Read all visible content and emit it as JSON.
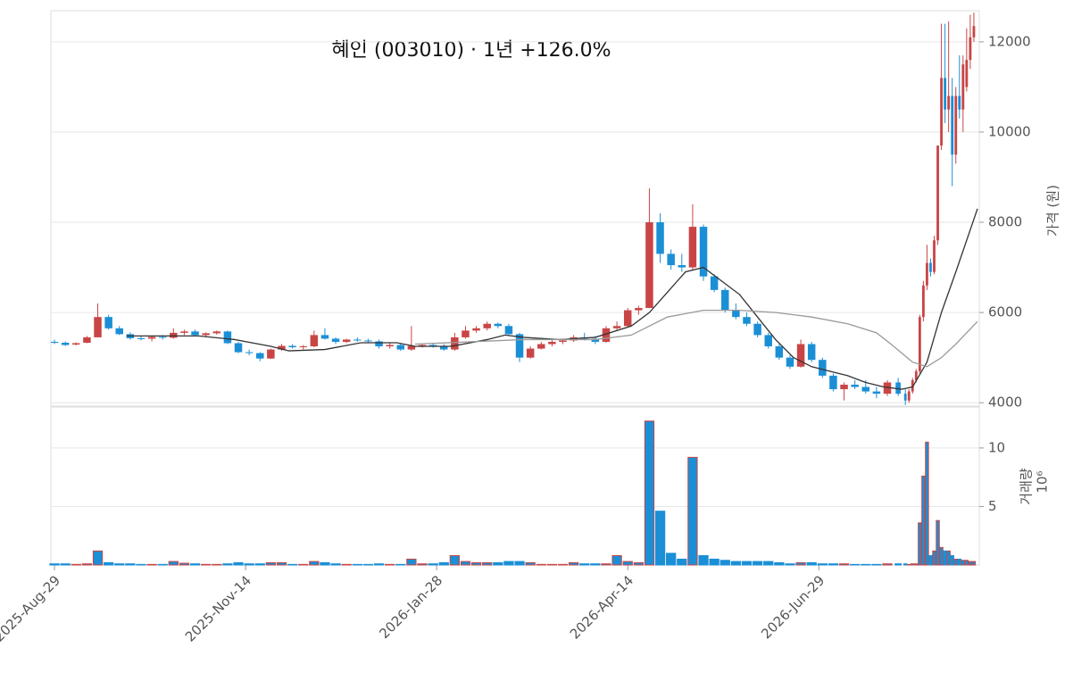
{
  "chart_data": [
    {
      "type": "candlestick",
      "title": "혜인 (003010)  ·  1년 +126.0%",
      "ylabel": "가격 (원)",
      "up_color": "#c94545",
      "down_color": "#1b8fd6",
      "xlim": [
        -1,
        256.5
      ],
      "xticks": [
        {
          "value": 0,
          "label": "2025-Aug-29"
        },
        {
          "value": 53,
          "label": "2025-Nov-14"
        },
        {
          "value": 106,
          "label": "2026-Jan-28"
        },
        {
          "value": 159,
          "label": "2026-Apr-14"
        },
        {
          "value": 212,
          "label": "2026-Jun-29"
        }
      ],
      "ylim": [
        3925,
        12690
      ],
      "yticks": [
        4000,
        6000,
        8000,
        10000,
        12000
      ],
      "grid": true,
      "x": [
        0,
        3,
        6,
        9,
        12,
        15,
        18,
        21,
        24,
        27,
        30,
        33,
        36,
        39,
        42,
        45,
        48,
        51,
        54,
        57,
        60,
        63,
        66,
        69,
        72,
        75,
        78,
        81,
        84,
        87,
        90,
        93,
        96,
        99,
        102,
        105,
        108,
        111,
        114,
        117,
        120,
        123,
        126,
        129,
        132,
        135,
        138,
        141,
        144,
        147,
        150,
        153,
        156,
        159,
        162,
        165,
        168,
        171,
        174,
        177,
        180,
        183,
        186,
        189,
        192,
        195,
        198,
        201,
        204,
        207,
        210,
        213,
        216,
        219,
        222,
        225,
        228,
        231,
        234,
        236,
        237,
        238,
        239,
        240,
        241,
        242,
        243,
        244,
        245,
        246,
        247,
        248,
        249,
        250,
        251,
        252,
        253,
        254,
        255
      ],
      "open": [
        5350,
        5330,
        5290,
        5330,
        5450,
        5900,
        5650,
        5520,
        5430,
        5420,
        5460,
        5440,
        5550,
        5580,
        5500,
        5540,
        5580,
        5320,
        5120,
        5100,
        4980,
        5180,
        5260,
        5230,
        5250,
        5500,
        5420,
        5350,
        5400,
        5380,
        5360,
        5250,
        5280,
        5180,
        5260,
        5280,
        5250,
        5180,
        5450,
        5600,
        5650,
        5750,
        5700,
        5520,
        5000,
        5200,
        5300,
        5350,
        5380,
        5450,
        5420,
        5350,
        5650,
        5700,
        6050,
        6100,
        8000,
        7300,
        7050,
        7000,
        7900,
        6800,
        6500,
        6050,
        5900,
        5750,
        5500,
        5250,
        5000,
        4800,
        5300,
        4950,
        4600,
        4300,
        4400,
        4350,
        4250,
        4200,
        4450,
        4200,
        4050,
        4250,
        4500,
        4700,
        5900,
        6600,
        7100,
        6900,
        7600,
        9700,
        11200,
        10500,
        10800,
        9500,
        10800,
        10500,
        11000,
        11600,
        12100
      ],
      "high": [
        5400,
        5360,
        5340,
        5480,
        6200,
        5950,
        5700,
        5560,
        5480,
        5480,
        5500,
        5650,
        5620,
        5620,
        5560,
        5600,
        5600,
        5350,
        5180,
        5120,
        5200,
        5300,
        5300,
        5280,
        5600,
        5650,
        5450,
        5420,
        5450,
        5420,
        5400,
        5320,
        5320,
        5700,
        5320,
        5330,
        5300,
        5550,
        5700,
        5700,
        5800,
        5780,
        5750,
        5550,
        5250,
        5350,
        5400,
        5420,
        5500,
        5550,
        5480,
        5700,
        5800,
        6100,
        6150,
        8750,
        8200,
        7400,
        7300,
        8400,
        7950,
        6850,
        6550,
        6200,
        6000,
        5800,
        5550,
        5300,
        5050,
        5400,
        5350,
        5000,
        4650,
        4450,
        4500,
        4500,
        4350,
        4500,
        4550,
        4300,
        4300,
        4550,
        4750,
        5950,
        6700,
        7500,
        7200,
        7700,
        9700,
        12400,
        12400,
        12450,
        11200,
        11000,
        11700,
        11700,
        12300,
        12600,
        12650
      ],
      "low": [
        5300,
        5260,
        5270,
        5320,
        5450,
        5620,
        5500,
        5400,
        5380,
        5360,
        5400,
        5420,
        5500,
        5480,
        5450,
        5510,
        5300,
        5100,
        5050,
        4920,
        4970,
        5150,
        5200,
        5180,
        5230,
        5400,
        5300,
        5320,
        5350,
        5320,
        5200,
        5200,
        5150,
        5150,
        5220,
        5220,
        5150,
        5150,
        5420,
        5550,
        5600,
        5650,
        5500,
        4900,
        4980,
        5180,
        5250,
        5300,
        5350,
        5380,
        5300,
        5330,
        5600,
        5680,
        5950,
        6100,
        7100,
        6950,
        6900,
        6950,
        6700,
        6450,
        6000,
        5850,
        5700,
        5450,
        5200,
        4950,
        4750,
        4780,
        4900,
        4550,
        4250,
        4050,
        4300,
        4200,
        4100,
        4150,
        4150,
        3950,
        4000,
        4200,
        4450,
        4650,
        5800,
        6500,
        6800,
        6850,
        7500,
        9600,
        10200,
        10000,
        8800,
        9300,
        10300,
        10000,
        10900,
        11400,
        12000
      ],
      "close": [
        5330,
        5280,
        5320,
        5450,
        5900,
        5650,
        5520,
        5430,
        5420,
        5460,
        5440,
        5550,
        5580,
        5500,
        5540,
        5580,
        5320,
        5120,
        5100,
        4980,
        5180,
        5260,
        5230,
        5250,
        5500,
        5420,
        5350,
        5400,
        5380,
        5360,
        5250,
        5280,
        5180,
        5260,
        5280,
        5250,
        5180,
        5450,
        5600,
        5650,
        5750,
        5700,
        5520,
        5000,
        5200,
        5300,
        5350,
        5380,
        5450,
        5420,
        5350,
        5650,
        5700,
        6050,
        6100,
        8000,
        7300,
        7050,
        7000,
        7900,
        6800,
        6500,
        6050,
        5900,
        5750,
        5500,
        5250,
        5000,
        4800,
        5300,
        4950,
        4600,
        4300,
        4400,
        4350,
        4250,
        4200,
        4450,
        4200,
        4050,
        4250,
        4500,
        4700,
        5900,
        6600,
        7100,
        6900,
        7600,
        9700,
        11200,
        10500,
        10800,
        9500,
        10800,
        10500,
        11500,
        11600,
        12100,
        12350
      ],
      "lines": [
        {
          "color": "#333333",
          "x": [
            20,
            40,
            50,
            60,
            65,
            75,
            85,
            95,
            100,
            110,
            120,
            125,
            130,
            140,
            150,
            160,
            165,
            170,
            175,
            180,
            185,
            190,
            195,
            200,
            205,
            210,
            215,
            220,
            225,
            230,
            235,
            238,
            242,
            246,
            250,
            256
          ],
          "values": [
            5480,
            5480,
            5400,
            5250,
            5150,
            5180,
            5330,
            5330,
            5250,
            5250,
            5400,
            5500,
            5450,
            5400,
            5450,
            5700,
            6000,
            6450,
            6900,
            7000,
            6700,
            6400,
            5900,
            5400,
            5000,
            4800,
            4700,
            4600,
            4450,
            4350,
            4300,
            4350,
            4900,
            6000,
            6900,
            8300
          ]
        },
        {
          "color": "#999999",
          "x": [
            100,
            130,
            150,
            160,
            170,
            180,
            190,
            200,
            210,
            220,
            228,
            232,
            238,
            242,
            246,
            250,
            256
          ],
          "values": [
            5300,
            5400,
            5400,
            5500,
            5900,
            6050,
            6050,
            6000,
            5900,
            5750,
            5550,
            5300,
            4900,
            4800,
            5000,
            5300,
            5800
          ]
        }
      ]
    },
    {
      "type": "bar",
      "ylabel": "거래량",
      "scale_label": "10⁶",
      "ylim": [
        0,
        13.5
      ],
      "yticks": [
        5,
        10
      ],
      "grid": true,
      "values": [
        0.1,
        0.1,
        0.05,
        0.1,
        1.2,
        0.2,
        0.1,
        0.1,
        0.05,
        0.05,
        0.05,
        0.3,
        0.15,
        0.1,
        0.05,
        0.05,
        0.1,
        0.2,
        0.1,
        0.1,
        0.2,
        0.2,
        0.05,
        0.05,
        0.3,
        0.2,
        0.1,
        0.05,
        0.05,
        0.05,
        0.1,
        0.05,
        0.05,
        0.5,
        0.1,
        0.1,
        0.2,
        0.8,
        0.3,
        0.2,
        0.2,
        0.2,
        0.3,
        0.3,
        0.2,
        0.05,
        0.05,
        0.05,
        0.2,
        0.1,
        0.1,
        0.1,
        0.8,
        0.3,
        0.2,
        12.3,
        4.6,
        1.0,
        0.5,
        9.2,
        0.8,
        0.5,
        0.4,
        0.3,
        0.3,
        0.3,
        0.3,
        0.2,
        0.1,
        0.2,
        0.2,
        0.1,
        0.1,
        0.1,
        0.05,
        0.05,
        0.05,
        0.1,
        0.1,
        0.1,
        0.05,
        0.1,
        0.1,
        3.6,
        7.6,
        10.5,
        0.8,
        1.2,
        3.8,
        1.5,
        1.2,
        1.2,
        0.8,
        0.5,
        0.5,
        0.4,
        0.4,
        0.3,
        0.3
      ]
    }
  ]
}
